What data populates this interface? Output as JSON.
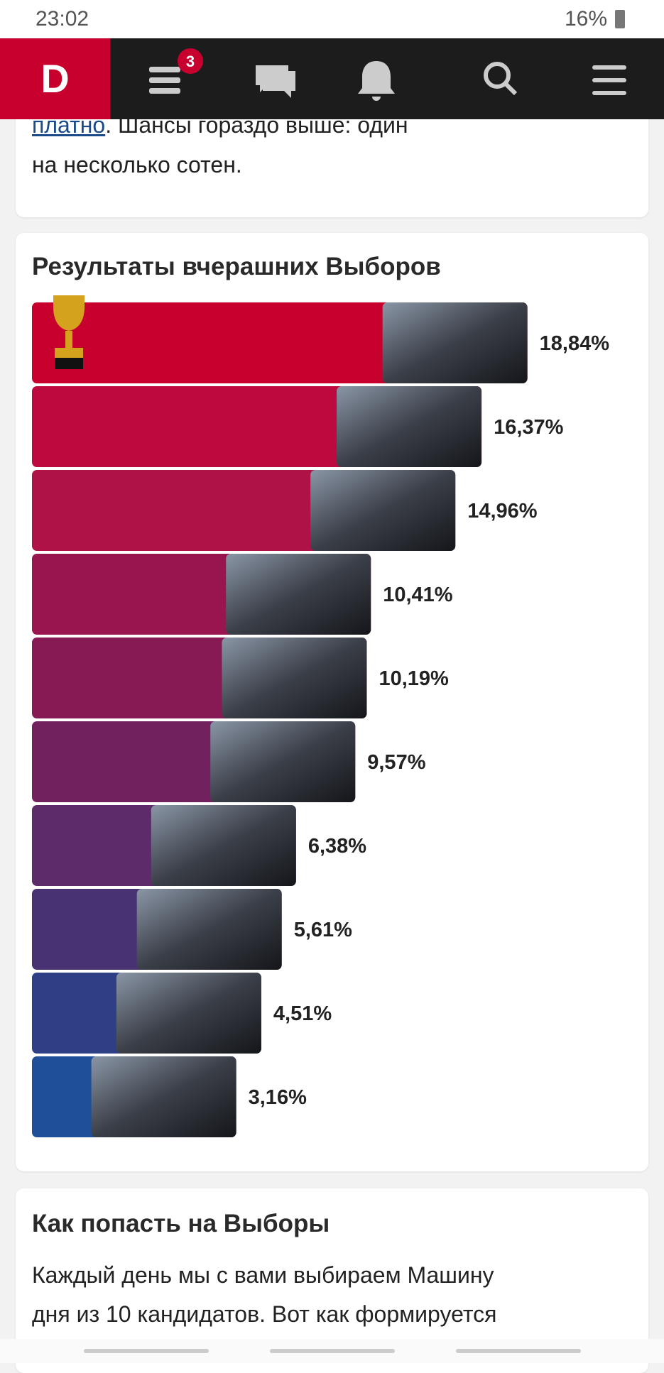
{
  "status_bar": {
    "time": "23:02",
    "battery": "16%"
  },
  "nav": {
    "logo": "D",
    "badge": "3"
  },
  "article_tail": {
    "link": "платно",
    "line1_rest": ". Шансы гораздо выше: один",
    "line2": "на несколько сотен."
  },
  "chart_data": {
    "type": "bar",
    "orientation": "horizontal",
    "title": "Результаты вчерашних Выборов",
    "values": [
      18.84,
      16.37,
      14.96,
      10.41,
      10.19,
      9.57,
      6.38,
      5.61,
      4.51,
      3.16
    ],
    "value_labels": [
      "18,84%",
      "16,37%",
      "14,96%",
      "10,41%",
      "10,19%",
      "9,57%",
      "6,38%",
      "5,61%",
      "4,51%",
      "3,16%"
    ],
    "colors": [
      "#c8002e",
      "#bd0a3e",
      "#ae1247",
      "#98154f",
      "#871a55",
      "#72215f",
      "#5d2a6a",
      "#483274",
      "#2f3f86",
      "#1f4f98"
    ]
  },
  "section": {
    "title": "Как попасть на Выборы",
    "line1": "Каждый день мы с вами выбираем Машину",
    "line2": "дня из 10 кандидатов. Вот как формируется"
  }
}
